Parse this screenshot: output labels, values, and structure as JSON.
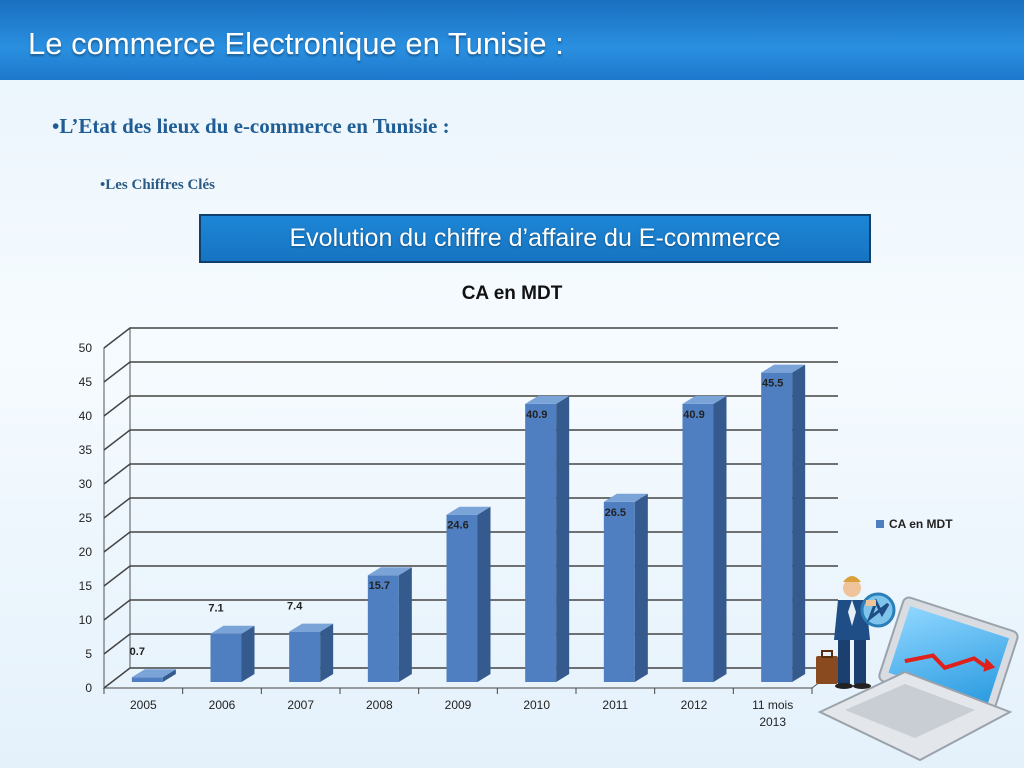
{
  "slide": {
    "title": "Le commerce Electronique en Tunisie :",
    "bullet_1": "•L’Etat des lieux du e-commerce en Tunisie :",
    "bullet_2": "•Les Chiffres Clés",
    "chart_banner": "Evolution du  chiffre d’affaire du E-commerce"
  },
  "colors": {
    "bar_front": "#4f7fc0",
    "bar_side": "#345a8e",
    "bar_top": "#7aa3d8",
    "title_bar": "#1f7fd0"
  },
  "illustration": {
    "icon": "businessman-laptop-icon"
  },
  "chart_data": {
    "type": "bar",
    "title": "CA en MDT",
    "categories": [
      "2005",
      "2006",
      "2007",
      "2008",
      "2009",
      "2010",
      "2011",
      "2012",
      "11 mois 2013"
    ],
    "series": [
      {
        "name": "CA en MDT",
        "values": [
          0.7,
          7.1,
          7.4,
          15.7,
          24.6,
          40.9,
          26.5,
          40.9,
          45.5
        ]
      }
    ],
    "data_labels": [
      "0.7",
      "7.1",
      "7.4",
      "15.7",
      "24.6",
      "40.9",
      "26.5",
      "40.9",
      "45.5"
    ],
    "ylim": [
      0,
      50
    ],
    "yticks": [
      "0",
      "5",
      "10",
      "15",
      "20",
      "25",
      "30",
      "35",
      "40",
      "45",
      "50"
    ],
    "ytick_values": [
      0,
      5,
      10,
      15,
      20,
      25,
      30,
      35,
      40,
      45,
      50
    ],
    "grid": true,
    "legend": "right",
    "style": "3d"
  }
}
